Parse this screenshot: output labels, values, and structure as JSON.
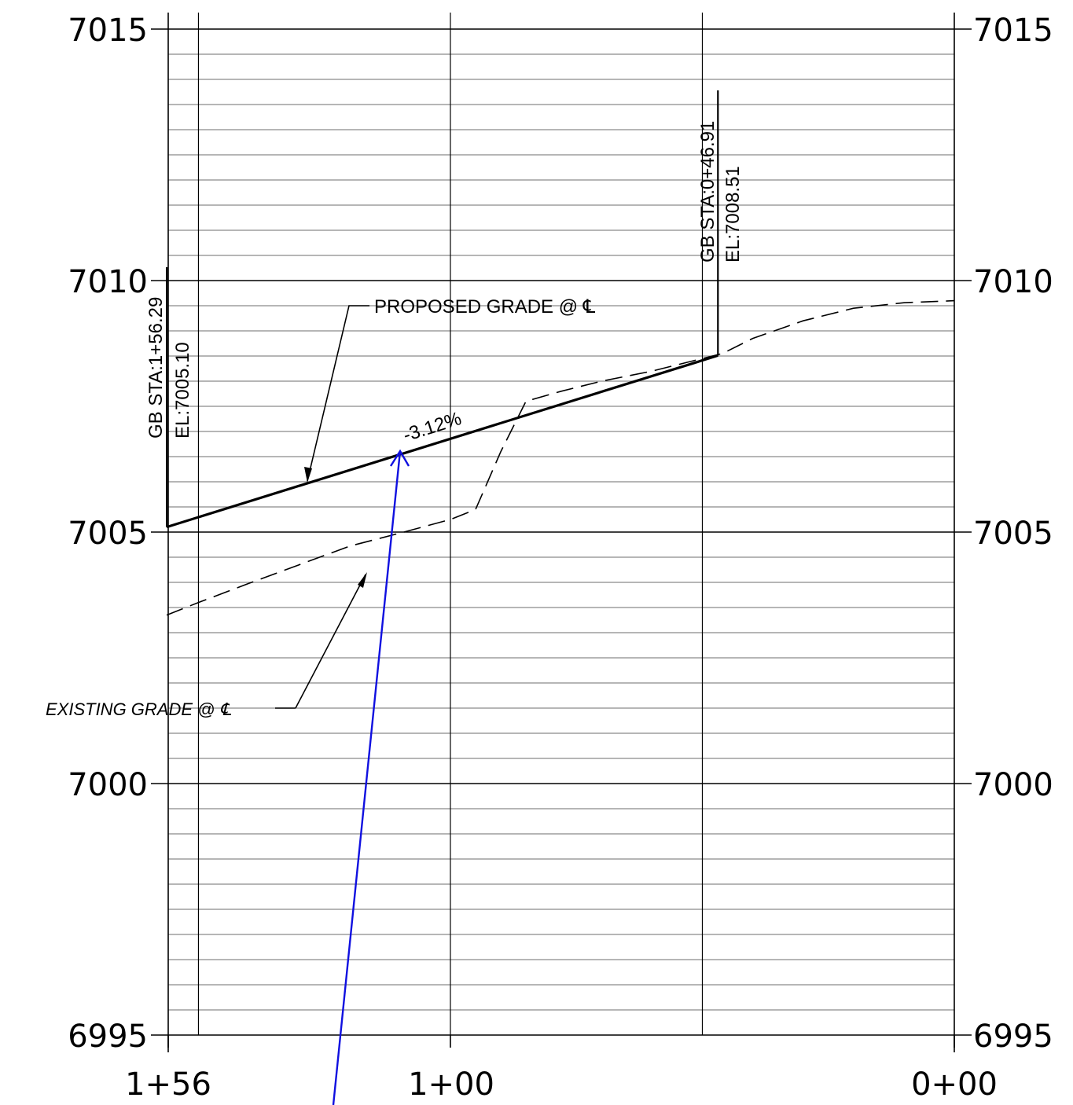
{
  "chart_data": {
    "type": "line",
    "x_ticks": [
      "1+56",
      "1+00",
      "0+00"
    ],
    "y_ticks": [
      "7015",
      "7010",
      "7005",
      "7000",
      "6995"
    ],
    "ylim": [
      6995,
      7015
    ],
    "xlim_ft": [
      156,
      0
    ],
    "y_minor_step_ft": 0.5,
    "x_grid_ft": [
      150,
      100,
      50
    ],
    "series": [
      {
        "name": "PROPOSED GRADE",
        "style": "solid",
        "points": [
          [
            156.29,
            7005.1
          ],
          [
            46.91,
            7008.51
          ]
        ]
      },
      {
        "name": "EXISTING GRADE",
        "style": "dashed",
        "points": [
          [
            156.29,
            7003.35
          ],
          [
            150,
            7003.6
          ],
          [
            140,
            7003.98
          ],
          [
            130,
            7004.35
          ],
          [
            120,
            7004.72
          ],
          [
            110,
            7004.98
          ],
          [
            100,
            7005.25
          ],
          [
            95,
            7005.45
          ],
          [
            90,
            7006.6
          ],
          [
            85,
            7007.6
          ],
          [
            78,
            7007.8
          ],
          [
            70,
            7008.0
          ],
          [
            60,
            7008.2
          ],
          [
            46,
            7008.55
          ],
          [
            40,
            7008.85
          ],
          [
            30,
            7009.2
          ],
          [
            20,
            7009.45
          ],
          [
            10,
            7009.56
          ],
          [
            0,
            7009.6
          ]
        ]
      }
    ],
    "annotations": {
      "proposed_label": "PROPOSED GRADE @ ℄",
      "existing_label": "EXISTING GRADE @ ℄",
      "slope_label": "-3.12%",
      "gb1_sta": "GB STA:1+56.29",
      "gb1_el": "EL:7005.10",
      "gb2_sta": "GB STA:0+46.91",
      "gb2_el": "EL:7008.51"
    }
  }
}
